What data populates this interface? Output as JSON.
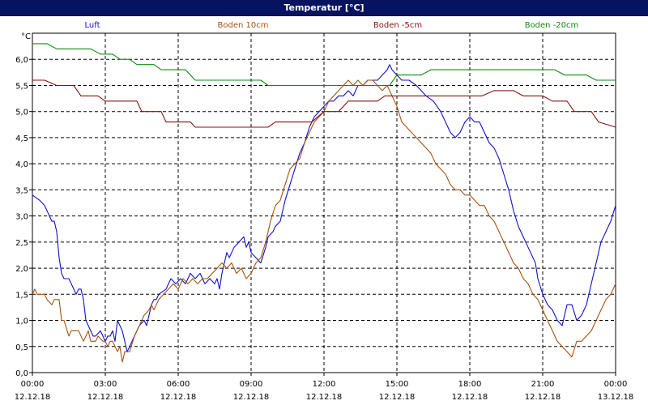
{
  "window": {
    "title": "Temperatur [°C]"
  },
  "chart_data": {
    "type": "line",
    "title": "Temperatur [°C]",
    "ylabel": "°C",
    "ylim": [
      0.0,
      6.5
    ],
    "y_ticks": [
      "0,0",
      "0,5",
      "1,0",
      "1,5",
      "2,0",
      "2,5",
      "3,0",
      "3,5",
      "4,0",
      "4,5",
      "5,0",
      "5,5",
      "6,0"
    ],
    "xlim_hours": [
      0,
      24
    ],
    "x_ticks": [
      {
        "time": "00:00",
        "date": "12.12.18"
      },
      {
        "time": "03:00",
        "date": "12.12.18"
      },
      {
        "time": "06:00",
        "date": "12.12.18"
      },
      {
        "time": "09:00",
        "date": "12.12.18"
      },
      {
        "time": "12:00",
        "date": "12.12.18"
      },
      {
        "time": "15:00",
        "date": "12.12.18"
      },
      {
        "time": "18:00",
        "date": "12.12.18"
      },
      {
        "time": "21:00",
        "date": "12.12.18"
      },
      {
        "time": "00:00",
        "date": "13.12.18"
      }
    ],
    "grid": true,
    "legend_position": "top",
    "series": [
      {
        "name": "Luft",
        "color": "#1010cc",
        "step": false,
        "x": [
          0,
          0.3,
          0.5,
          0.7,
          0.8,
          0.9,
          1.0,
          1.1,
          1.2,
          1.3,
          1.5,
          1.6,
          1.8,
          1.9,
          2.0,
          2.1,
          2.2,
          2.3,
          2.5,
          2.6,
          2.8,
          2.9,
          3.0,
          3.1,
          3.2,
          3.3,
          3.4,
          3.5,
          3.7,
          3.8,
          3.9,
          4.0,
          4.2,
          4.4,
          4.6,
          4.7,
          4.9,
          5.0,
          5.1,
          5.2,
          5.5,
          5.7,
          5.9,
          6.1,
          6.3,
          6.5,
          6.7,
          6.9,
          7.1,
          7.3,
          7.5,
          7.6,
          7.7,
          7.8,
          7.9,
          8.0,
          8.1,
          8.3,
          8.5,
          8.7,
          8.8,
          8.9,
          9.0,
          9.2,
          9.4,
          9.6,
          9.7,
          9.9,
          10.0,
          10.2,
          10.4,
          10.6,
          10.8,
          11.0,
          11.2,
          11.4,
          11.6,
          11.8,
          12.0,
          12.2,
          12.4,
          12.6,
          12.8,
          13.0,
          13.2,
          13.4,
          13.6,
          13.8,
          14.0,
          14.2,
          14.4,
          14.6,
          14.7,
          14.8,
          15.0,
          15.2,
          15.5,
          15.8,
          16.0,
          16.2,
          16.5,
          16.8,
          17.0,
          17.2,
          17.4,
          17.6,
          17.8,
          18.0,
          18.2,
          18.4,
          18.6,
          18.8,
          19.0,
          19.2,
          19.4,
          19.6,
          19.8,
          20.0,
          20.2,
          20.4,
          20.6,
          20.7,
          20.8,
          21.0,
          21.2,
          21.4,
          21.6,
          21.8,
          22.0,
          22.2,
          22.4,
          22.6,
          22.8,
          23.0,
          23.2,
          23.4,
          23.6,
          23.8,
          24.0
        ],
        "y": [
          3.4,
          3.3,
          3.2,
          3.0,
          2.9,
          2.9,
          2.7,
          2.2,
          1.9,
          1.8,
          1.8,
          1.7,
          1.5,
          1.6,
          1.6,
          1.4,
          1.0,
          0.9,
          0.7,
          0.7,
          0.8,
          0.7,
          0.6,
          0.7,
          0.7,
          0.8,
          0.6,
          1.0,
          0.8,
          0.6,
          0.4,
          0.5,
          0.7,
          0.9,
          1.0,
          0.9,
          1.3,
          1.4,
          1.4,
          1.5,
          1.6,
          1.8,
          1.7,
          1.8,
          1.7,
          1.9,
          1.8,
          1.9,
          1.7,
          1.8,
          1.7,
          1.8,
          1.6,
          1.9,
          2.1,
          2.3,
          2.2,
          2.4,
          2.5,
          2.6,
          2.4,
          2.5,
          2.3,
          2.2,
          2.1,
          2.4,
          2.6,
          2.7,
          2.8,
          2.9,
          3.3,
          3.6,
          3.9,
          4.2,
          4.4,
          4.7,
          4.9,
          5.0,
          5.1,
          5.2,
          5.2,
          5.3,
          5.3,
          5.4,
          5.3,
          5.5,
          5.5,
          5.6,
          5.6,
          5.6,
          5.7,
          5.8,
          5.9,
          5.8,
          5.7,
          5.6,
          5.6,
          5.5,
          5.4,
          5.3,
          5.2,
          5.0,
          4.8,
          4.6,
          4.5,
          4.6,
          4.8,
          4.9,
          4.8,
          4.8,
          4.6,
          4.4,
          4.3,
          4.1,
          3.8,
          3.5,
          3.1,
          2.8,
          2.6,
          2.4,
          2.2,
          2.1,
          1.8,
          1.5,
          1.3,
          1.2,
          1.0,
          0.9,
          1.3,
          1.3,
          1.0,
          1.1,
          1.3,
          1.7,
          2.1,
          2.5,
          2.7,
          2.9,
          3.2
        ],
        "y_smooth_note": ""
      },
      {
        "name": "Boden 10cm",
        "color": "#a8520e",
        "step": false,
        "x": [
          0,
          0.1,
          0.2,
          0.4,
          0.5,
          0.6,
          0.8,
          0.9,
          1.0,
          1.1,
          1.2,
          1.3,
          1.5,
          1.6,
          1.8,
          1.9,
          2.1,
          2.3,
          2.4,
          2.6,
          2.7,
          2.9,
          3.0,
          3.1,
          3.2,
          3.3,
          3.5,
          3.6,
          3.7,
          3.8,
          3.9,
          4.0,
          4.2,
          4.4,
          4.6,
          4.8,
          4.9,
          5.0,
          5.2,
          5.4,
          5.6,
          5.8,
          6.0,
          6.2,
          6.4,
          6.6,
          6.8,
          7.0,
          7.2,
          7.4,
          7.6,
          7.8,
          8.0,
          8.2,
          8.4,
          8.6,
          8.8,
          9.0,
          9.2,
          9.4,
          9.6,
          9.8,
          10.0,
          10.2,
          10.4,
          10.6,
          10.8,
          11.0,
          11.2,
          11.4,
          11.6,
          11.8,
          12.0,
          12.2,
          12.4,
          12.6,
          12.8,
          13.0,
          13.2,
          13.4,
          13.6,
          13.8,
          14.0,
          14.2,
          14.4,
          14.6,
          14.8,
          15.0,
          15.2,
          15.4,
          15.6,
          15.8,
          16.0,
          16.2,
          16.4,
          16.6,
          16.8,
          17.0,
          17.2,
          17.4,
          17.6,
          17.8,
          18.0,
          18.2,
          18.4,
          18.6,
          18.8,
          19.0,
          19.2,
          19.4,
          19.6,
          19.8,
          20.0,
          20.2,
          20.4,
          20.6,
          20.8,
          21.0,
          21.2,
          21.4,
          21.6,
          21.8,
          22.0,
          22.2,
          22.4,
          22.6,
          22.8,
          23.0,
          23.2,
          23.4,
          23.6,
          23.8,
          24.0
        ],
        "y": [
          1.5,
          1.6,
          1.5,
          1.5,
          1.5,
          1.4,
          1.3,
          1.4,
          1.4,
          1.4,
          1.0,
          1.0,
          0.7,
          0.8,
          0.8,
          0.8,
          0.6,
          0.8,
          0.6,
          0.6,
          0.7,
          0.6,
          0.6,
          0.5,
          0.6,
          0.6,
          0.4,
          0.5,
          0.2,
          0.4,
          0.4,
          0.4,
          0.7,
          0.9,
          1.1,
          1.2,
          1.3,
          1.2,
          1.4,
          1.5,
          1.6,
          1.7,
          1.6,
          1.8,
          1.7,
          1.8,
          1.7,
          1.8,
          1.8,
          1.9,
          2.0,
          2.1,
          2.0,
          2.1,
          1.9,
          2.0,
          1.8,
          1.9,
          2.1,
          2.2,
          2.5,
          2.9,
          3.2,
          3.3,
          3.6,
          3.9,
          4.0,
          4.1,
          4.4,
          4.6,
          4.8,
          4.9,
          5.0,
          5.2,
          5.3,
          5.4,
          5.5,
          5.6,
          5.5,
          5.6,
          5.5,
          5.6,
          5.6,
          5.5,
          5.4,
          5.5,
          5.3,
          5.1,
          4.8,
          4.7,
          4.6,
          4.5,
          4.4,
          4.3,
          4.2,
          4.0,
          3.9,
          3.8,
          3.6,
          3.5,
          3.5,
          3.4,
          3.4,
          3.3,
          3.2,
          3.2,
          3.0,
          2.9,
          2.7,
          2.5,
          2.3,
          2.1,
          2.0,
          1.8,
          1.7,
          1.5,
          1.4,
          1.2,
          1.0,
          0.8,
          0.6,
          0.5,
          0.4,
          0.3,
          0.6,
          0.6,
          0.7,
          0.8,
          1.0,
          1.2,
          1.4,
          1.5,
          1.7
        ],
        "y_smooth_note": ""
      },
      {
        "name": "Boden -5cm",
        "color": "#8a1010",
        "step": true,
        "x": [
          0,
          0.5,
          1.0,
          1.7,
          2.0,
          2.7,
          3.0,
          4.3,
          4.5,
          5.3,
          5.5,
          6.5,
          6.7,
          9.7,
          10.0,
          11.5,
          12.0,
          12.6,
          13.0,
          14.2,
          14.5,
          18.5,
          19.0,
          19.8,
          20.2,
          21.0,
          21.4,
          22.0,
          22.3,
          23.0,
          23.3,
          24.0
        ],
        "y": [
          5.6,
          5.6,
          5.5,
          5.5,
          5.3,
          5.3,
          5.2,
          5.2,
          5.0,
          5.0,
          4.8,
          4.8,
          4.7,
          4.7,
          4.8,
          4.8,
          5.0,
          5.0,
          5.2,
          5.2,
          5.3,
          5.3,
          5.4,
          5.4,
          5.3,
          5.3,
          5.2,
          5.2,
          5.0,
          5.0,
          4.8,
          4.7
        ],
        "y_smooth_note": ""
      },
      {
        "name": "Boden -20cm",
        "color": "#108a10",
        "step": true,
        "x": [
          0,
          0.6,
          1.0,
          2.4,
          2.8,
          3.3,
          3.6,
          4.0,
          4.3,
          5.0,
          5.3,
          6.3,
          6.7,
          9.4,
          9.7,
          14.7,
          15.0,
          16.0,
          16.4,
          21.5,
          21.9,
          22.8,
          23.2,
          24.0
        ],
        "y": [
          6.3,
          6.3,
          6.2,
          6.2,
          6.1,
          6.1,
          6.0,
          6.0,
          5.9,
          5.9,
          5.8,
          5.8,
          5.6,
          5.6,
          5.5,
          5.5,
          5.7,
          5.7,
          5.8,
          5.8,
          5.7,
          5.7,
          5.6,
          5.6
        ],
        "y_smooth_note": ""
      }
    ]
  }
}
